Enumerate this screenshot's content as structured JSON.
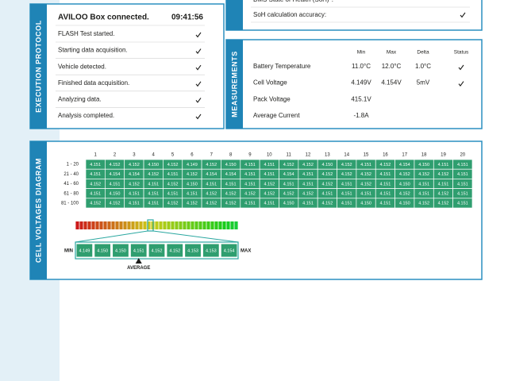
{
  "top_panel": {
    "rows": [
      {
        "label": "BMS State of Health (SoH)*:",
        "check": false
      },
      {
        "label": "SoH calculation accuracy:",
        "check": true
      }
    ]
  },
  "execution_protocol": {
    "title": "EXECUTION PROTOCOL",
    "header": "AVILOO Box connected.",
    "time": "09:41:56",
    "steps": [
      {
        "label": "FLASH Test started.",
        "check": true
      },
      {
        "label": "Starting data acquisition.",
        "check": true
      },
      {
        "label": "Vehicle detected.",
        "check": true
      },
      {
        "label": "Finished data acquisition.",
        "check": true
      },
      {
        "label": "Analyzing data.",
        "check": true
      },
      {
        "label": "Analysis completed.",
        "check": true
      }
    ]
  },
  "measurements": {
    "title": "MEASUREMENTS",
    "columns": [
      "Min",
      "Max",
      "Delta",
      "Status"
    ],
    "rows": [
      {
        "label": "Battery Temperature",
        "min": "11.0°C",
        "max": "12.0°C",
        "delta": "1.0°C",
        "status": true
      },
      {
        "label": "Cell Voltage",
        "min": "4.149V",
        "max": "4.154V",
        "delta": "5mV",
        "status": true
      },
      {
        "label": "Pack Voltage",
        "min": "415.1V",
        "max": "",
        "delta": "",
        "status": false
      },
      {
        "label": "Average Current",
        "min": "-1.8A",
        "max": "",
        "delta": "",
        "status": false
      }
    ]
  },
  "cell_voltages": {
    "title": "CELL VOLTAGES DIAGRAM",
    "column_headers": [
      "1",
      "2",
      "3",
      "4",
      "5",
      "6",
      "7",
      "8",
      "9",
      "10",
      "11",
      "12",
      "13",
      "14",
      "15",
      "16",
      "17",
      "18",
      "19",
      "20"
    ],
    "row_labels": [
      "1 - 20",
      "21 - 40",
      "41 - 60",
      "61 - 80",
      "81 - 100"
    ],
    "rows": [
      [
        "4.151",
        "4.152",
        "4.152",
        "4.150",
        "4.152",
        "4.149",
        "4.152",
        "4.150",
        "4.151",
        "4.151",
        "4.152",
        "4.152",
        "4.150",
        "4.152",
        "4.151",
        "4.152",
        "4.154",
        "4.150",
        "4.151",
        "4.151"
      ],
      [
        "4.151",
        "4.154",
        "4.154",
        "4.152",
        "4.151",
        "4.152",
        "4.154",
        "4.154",
        "4.151",
        "4.151",
        "4.154",
        "4.151",
        "4.152",
        "4.152",
        "4.152",
        "4.151",
        "4.152",
        "4.152",
        "4.152",
        "4.151"
      ],
      [
        "4.152",
        "4.151",
        "4.152",
        "4.151",
        "4.152",
        "4.150",
        "4.151",
        "4.151",
        "4.151",
        "4.152",
        "4.151",
        "4.151",
        "4.152",
        "4.151",
        "4.152",
        "4.151",
        "4.150",
        "4.151",
        "4.151",
        "4.151"
      ],
      [
        "4.151",
        "4.150",
        "4.151",
        "4.151",
        "4.151",
        "4.151",
        "4.152",
        "4.152",
        "4.152",
        "4.152",
        "4.152",
        "4.152",
        "4.151",
        "4.151",
        "4.151",
        "4.151",
        "4.152",
        "4.151",
        "4.152",
        "4.151"
      ],
      [
        "4.152",
        "4.152",
        "4.151",
        "4.151",
        "4.152",
        "4.152",
        "4.152",
        "4.152",
        "4.151",
        "4.151",
        "4.150",
        "4.151",
        "4.152",
        "4.151",
        "4.150",
        "4.151",
        "4.150",
        "4.152",
        "4.152",
        "4.151"
      ]
    ],
    "scale": {
      "min_label": "MIN",
      "max_label": "MAX",
      "values": [
        "4.149",
        "4.150",
        "4.150",
        "4.151",
        "4.152",
        "4.152",
        "4.153",
        "4.153",
        "4.154"
      ],
      "average": {
        "label": "AVERAGE",
        "index": 3
      }
    }
  }
}
